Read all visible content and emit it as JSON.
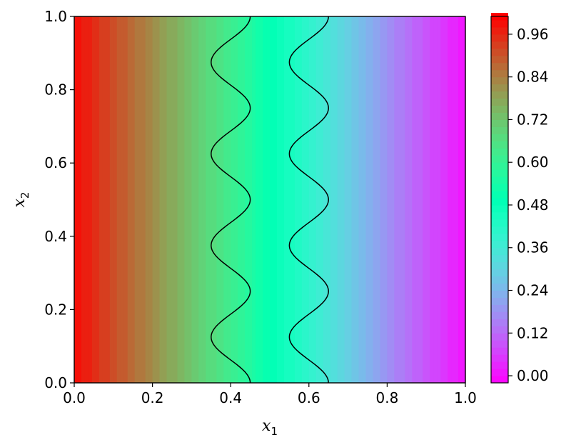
{
  "chart_data": {
    "type": "heatmap",
    "subtype": "filled-contour",
    "title": "",
    "xlabel": "x",
    "xlabel_subscript": "1",
    "ylabel": "x",
    "ylabel_subscript": "2",
    "xlim": [
      0.0,
      1.0
    ],
    "ylim": [
      0.0,
      1.0
    ],
    "xticks": [
      "0.0",
      "0.2",
      "0.4",
      "0.6",
      "0.8",
      "1.0"
    ],
    "yticks": [
      "0.0",
      "0.2",
      "0.4",
      "0.6",
      "0.8",
      "1.0"
    ],
    "colormap": "rainbow",
    "colorbar": {
      "range": [
        -0.02,
        1.01
      ],
      "ticks": [
        "0.00",
        "0.12",
        "0.24",
        "0.36",
        "0.48",
        "0.60",
        "0.72",
        "0.84",
        "0.96"
      ],
      "levels_step": 0.02
    },
    "field": {
      "description": "value decreases from 1.0 at x1=0 to 0.0 at x1=1",
      "samples": [
        {
          "x1": 0.0,
          "value": 1.0
        },
        {
          "x1": 0.2,
          "value": 0.82
        },
        {
          "x1": 0.4,
          "value": 0.62
        },
        {
          "x1": 0.5,
          "value": 0.5
        },
        {
          "x1": 0.6,
          "value": 0.4
        },
        {
          "x1": 0.8,
          "value": 0.18
        },
        {
          "x1": 1.0,
          "value": 0.0
        }
      ]
    },
    "boundary_curves": [
      {
        "center_x1": 0.4,
        "amplitude": 0.05,
        "periods": 4,
        "color": "#000000"
      },
      {
        "center_x1": 0.6,
        "amplitude": 0.05,
        "periods": 4,
        "color": "#000000"
      }
    ]
  }
}
